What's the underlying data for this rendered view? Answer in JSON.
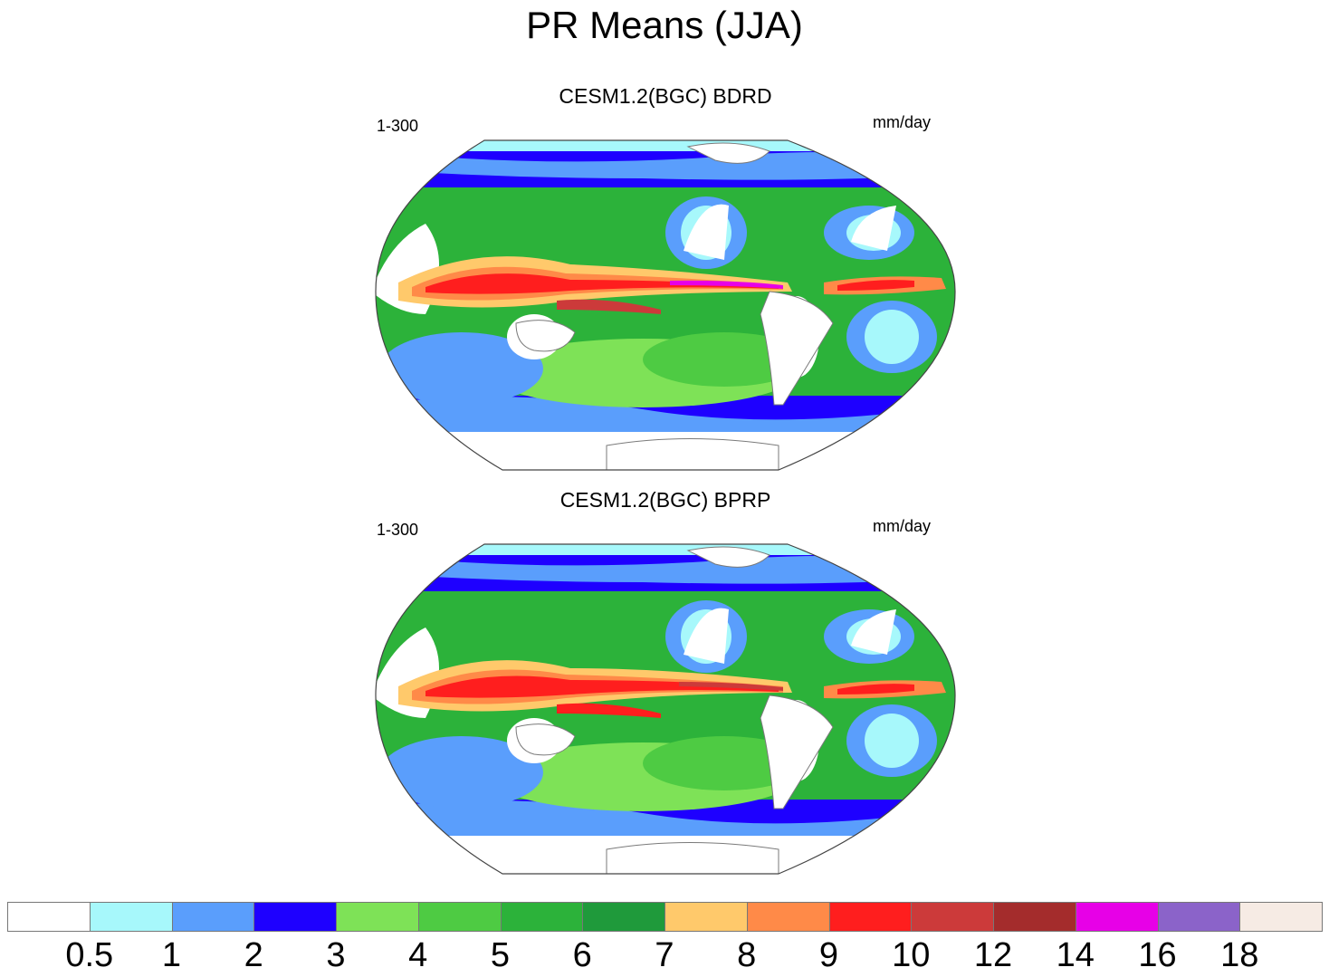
{
  "title": "PR Means (JJA)",
  "panels": [
    {
      "title": "CESM1.2(BGC) BDRD",
      "left_label": "1-300",
      "right_label": "mm/day"
    },
    {
      "title": "CESM1.2(BGC) BPRP",
      "left_label": "1-300",
      "right_label": "mm/day"
    }
  ],
  "colorbar": {
    "colors": [
      "#ffffff",
      "#a7f8fb",
      "#5a9efc",
      "#1e00ff",
      "#7ee257",
      "#4ecb43",
      "#2cb23a",
      "#1f9a3b",
      "#ffc96b",
      "#ff8a48",
      "#ff1e1e",
      "#cc3a3a",
      "#a42c2c",
      "#e700e7",
      "#8b63c9",
      "#f6ebe4"
    ],
    "labels": [
      "0.5",
      "1",
      "2",
      "3",
      "4",
      "5",
      "6",
      "7",
      "8",
      "9",
      "10",
      "12",
      "14",
      "16",
      "18"
    ]
  },
  "field_colors": {
    "land": "#ffffff",
    "coast": "#7a7a7a",
    "outline": "#444444"
  }
}
